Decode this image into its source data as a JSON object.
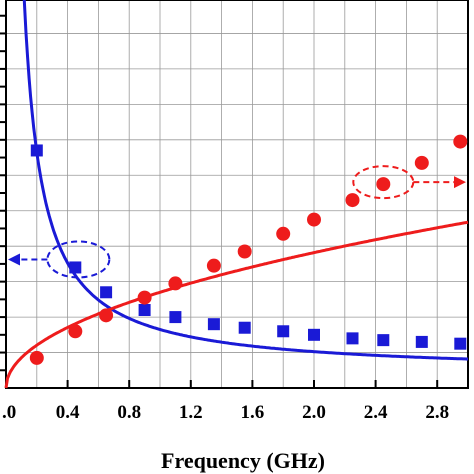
{
  "chart_data": {
    "type": "line",
    "xlabel": "Frequency (GHz)",
    "xlim": [
      0.0,
      3.0
    ],
    "x_ticks": [
      0.0,
      0.4,
      0.8,
      1.2,
      1.6,
      2.0,
      2.4,
      2.8
    ],
    "x_tick_labels": [
      ".0",
      "0.4",
      "0.8",
      "1.2",
      "1.6",
      "2.0",
      "2.4",
      "2.8"
    ],
    "ylim": [
      0,
      11
    ],
    "grid": true,
    "series": [
      {
        "marker": "square",
        "color": "#1a1ad6",
        "y_axis": "left",
        "x": [
          0.2,
          0.45,
          0.65,
          0.9,
          1.1,
          1.35,
          1.55,
          1.8,
          2.0,
          2.25,
          2.45,
          2.7,
          2.95
        ],
        "y": [
          6.7,
          3.4,
          2.7,
          2.2,
          2.0,
          1.8,
          1.7,
          1.6,
          1.5,
          1.4,
          1.35,
          1.3,
          1.25
        ]
      },
      {
        "marker": "circle",
        "color": "#ee1c1c",
        "y_axis": "right",
        "x": [
          0.2,
          0.45,
          0.65,
          0.9,
          1.1,
          1.35,
          1.55,
          1.8,
          2.0,
          2.25,
          2.45,
          2.7,
          2.95
        ],
        "y": [
          0.85,
          1.6,
          2.05,
          2.55,
          2.95,
          3.45,
          3.85,
          4.35,
          4.75,
          5.3,
          5.75,
          6.35,
          6.95
        ]
      }
    ],
    "annotations": [
      {
        "kind": "ellipse-arrow",
        "points_to": "left",
        "series": 0,
        "color": "#1a1ad6"
      },
      {
        "kind": "ellipse-arrow",
        "points_to": "right",
        "series": 1,
        "color": "#ee1c1c"
      }
    ]
  }
}
